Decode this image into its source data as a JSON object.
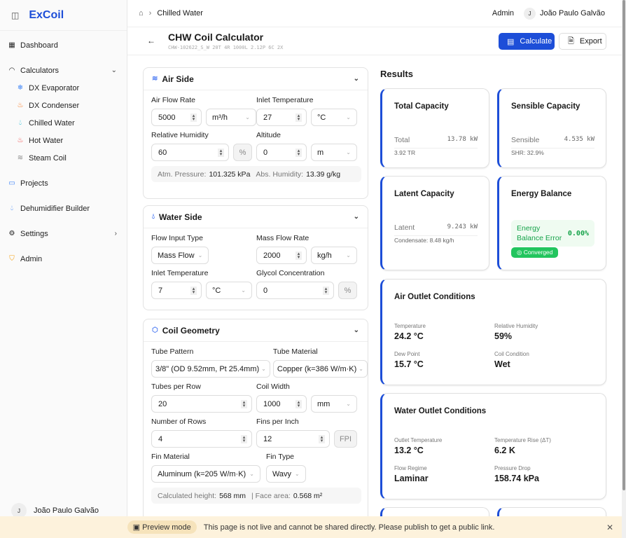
{
  "app": {
    "name": "ExCoil"
  },
  "sidebar": {
    "dashboard": "Dashboard",
    "calculators": "Calculators",
    "sub": [
      "DX Evaporator",
      "DX Condenser",
      "Chilled Water",
      "Hot Water",
      "Steam Coil"
    ],
    "projects": "Projects",
    "dehumidifier": "Dehumidifier Builder",
    "settings": "Settings",
    "admin": "Admin",
    "user": "João Paulo Galvão",
    "user_initial": "J"
  },
  "topbar": {
    "breadcrumb": "Chilled Water",
    "role": "Admin",
    "user_initial": "J",
    "user": "João Paulo Galvão"
  },
  "page": {
    "title": "CHW Coil Calculator",
    "subtitle": "CHW-102622_S_W 20T 4R 1000L 2.12P 6C 2X",
    "calculate": "Calculate",
    "export": "Export"
  },
  "air": {
    "title": "Air Side",
    "flow_label": "Air Flow Rate",
    "flow": "5000",
    "flow_unit": "m³/h",
    "temp_label": "Inlet Temperature",
    "temp": "27",
    "temp_unit": "°C",
    "rh_label": "Relative Humidity",
    "rh": "60",
    "rh_unit": "%",
    "alt_label": "Altitude",
    "alt": "0",
    "alt_unit": "m",
    "atm_label": "Atm. Pressure:",
    "atm": "101.325 kPa",
    "abs_label": "Abs. Humidity:",
    "abs": "13.39 g/kg"
  },
  "water": {
    "title": "Water Side",
    "fit_label": "Flow Input Type",
    "fit": "Mass Flow",
    "mfr_label": "Mass Flow Rate",
    "mfr": "2000",
    "mfr_unit": "kg/h",
    "temp_label": "Inlet Temperature",
    "temp": "7",
    "temp_unit": "°C",
    "glycol_label": "Glycol Concentration",
    "glycol": "0",
    "glycol_unit": "%"
  },
  "coil": {
    "title": "Coil Geometry",
    "tp_label": "Tube Pattern",
    "tp": "3/8\" (OD 9.52mm, Pt 25.4mm)",
    "tm_label": "Tube Material",
    "tm": "Copper (k=386 W/m·K)",
    "tpr_label": "Tubes per Row",
    "tpr": "20",
    "cw_label": "Coil Width",
    "cw": "1000",
    "cw_unit": "mm",
    "rows_label": "Number of Rows",
    "rows": "4",
    "fpi_label": "Fins per Inch",
    "fpi": "12",
    "fpi_unit": "FPI",
    "fm_label": "Fin Material",
    "fm": "Aluminum (k=205 W/m·K)",
    "ft_label": "Fin Type",
    "ft": "Wavy",
    "h_label": "Calculated height:",
    "h": "568 mm",
    "fa_label": "| Face area:",
    "fa": "0.568 m²"
  },
  "results": {
    "title": "Results",
    "total": {
      "title": "Total Capacity",
      "k": "Total",
      "v": "13.78 kW",
      "note": "3.92 TR"
    },
    "sensible": {
      "title": "Sensible Capacity",
      "k": "Sensible",
      "v": "4.535 kW",
      "note": "SHR: 32.9%"
    },
    "latent": {
      "title": "Latent Capacity",
      "k": "Latent",
      "v": "9.243 kW",
      "note": "Condensate: 8.48 kg/h"
    },
    "energy": {
      "title": "Energy Balance",
      "k": "Energy Balance Error",
      "v": "0.00%",
      "status": "Converged"
    },
    "air_out": {
      "title": "Air Outlet Conditions",
      "items": [
        {
          "k": "Temperature",
          "v": "24.2 °C"
        },
        {
          "k": "Relative Humidity",
          "v": "59%"
        },
        {
          "k": "Dew Point",
          "v": "15.7 °C"
        },
        {
          "k": "Coil Condition",
          "v": "Wet"
        }
      ]
    },
    "water_out": {
      "title": "Water Outlet Conditions",
      "items": [
        {
          "k": "Outlet Temperature",
          "v": "13.2 °C"
        },
        {
          "k": "Temperature Rise (ΔT)",
          "v": "6.2 K"
        },
        {
          "k": "Flow Regime",
          "v": "Laminar"
        },
        {
          "k": "Pressure Drop",
          "v": "158.74 kPa"
        }
      ]
    }
  },
  "banner": {
    "pill": "Preview mode",
    "text": "This page is not live and cannot be shared directly. Please publish to get a public link."
  },
  "colors": {
    "accent": "#1d4ed8",
    "success": "#22c55e"
  }
}
